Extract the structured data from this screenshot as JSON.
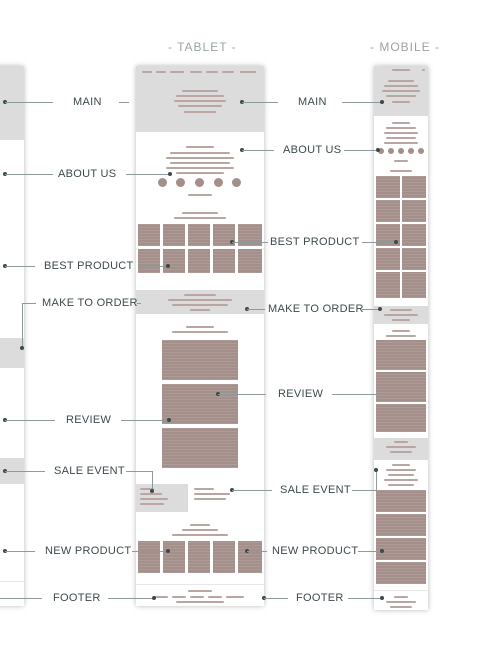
{
  "columns": {
    "tablet": "- TABLET -",
    "mobile": "- MOBILE -"
  },
  "left_labels": {
    "main": "MAIN",
    "about": "ABOUT US",
    "best": "BEST PRODUCT",
    "make": "MAKE TO ORDER",
    "review": "REVIEW",
    "sale": "SALE EVENT",
    "new": "NEW PRODUCT",
    "footer": "FOOTER"
  },
  "right_labels": {
    "main": "MAIN",
    "about": "ABOUT US",
    "best": "BEST PRODUCT",
    "make": "MAKE TO ORDER",
    "review": "REVIEW",
    "sale": "SALE EVENT",
    "new": "NEW PRODUCT",
    "footer": "FOOTER"
  }
}
